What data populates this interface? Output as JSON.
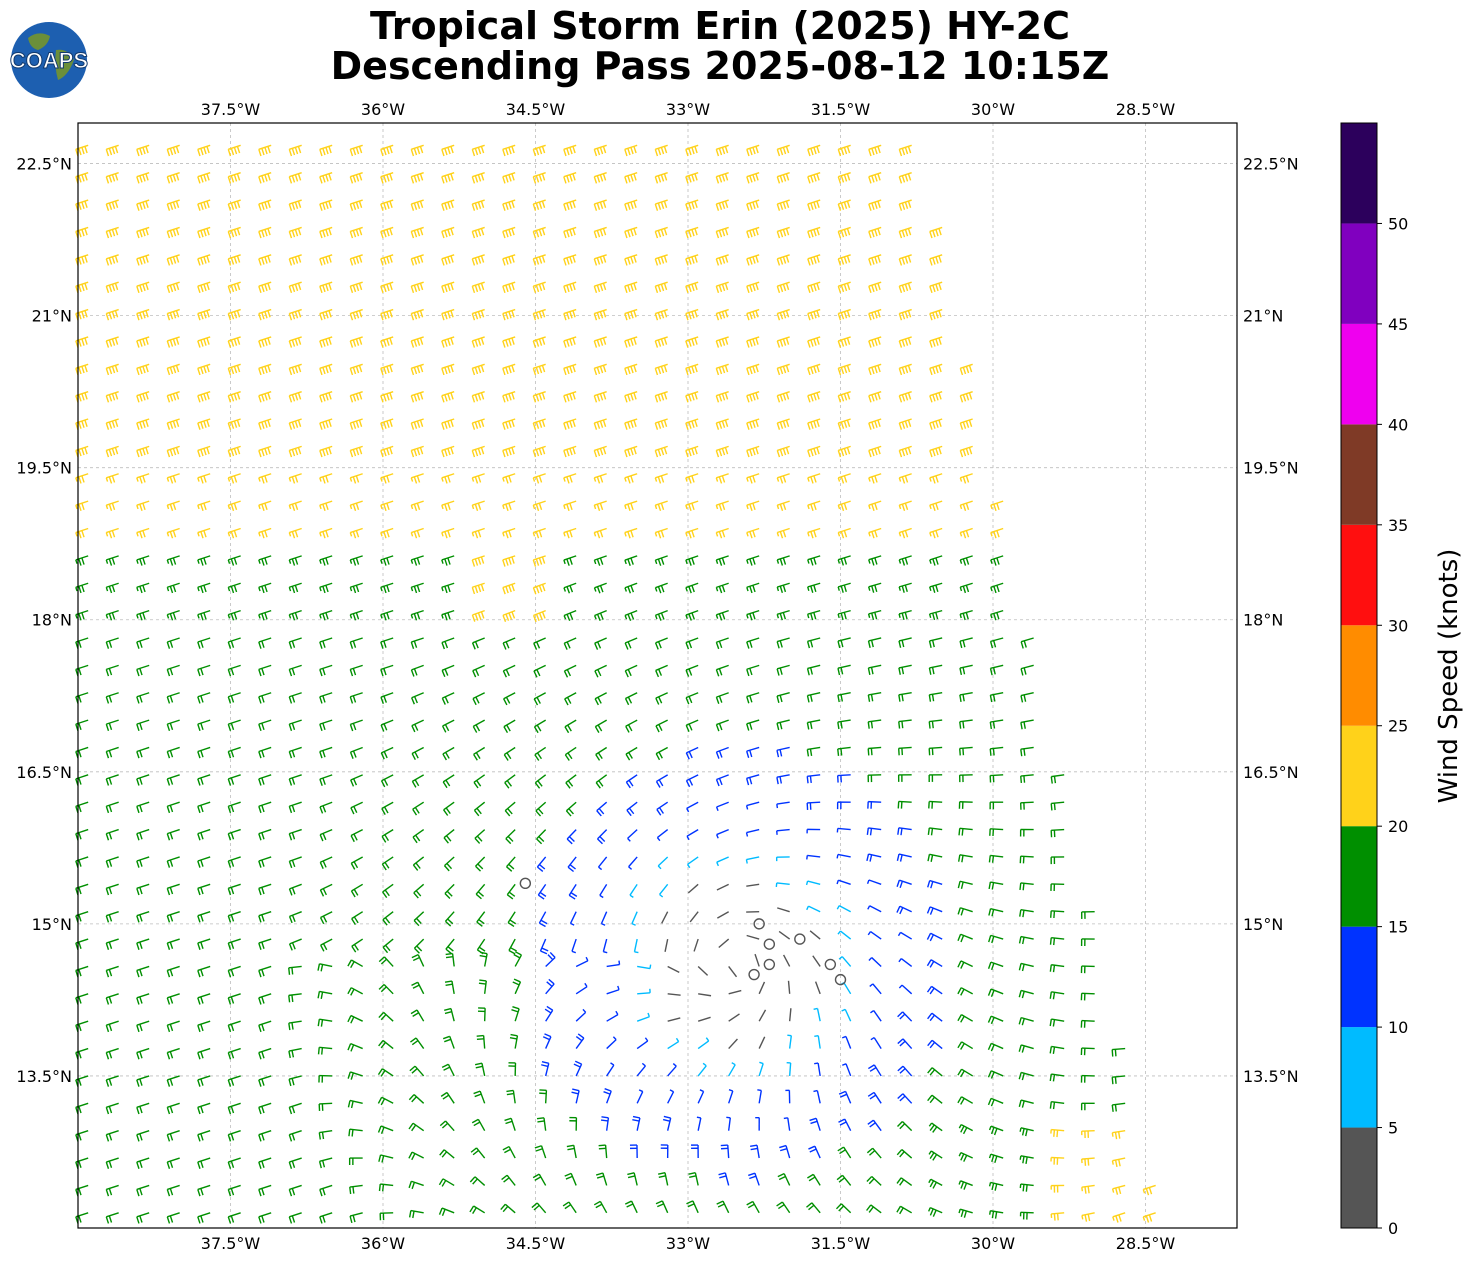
{
  "title": {
    "line1": "Tropical Storm Erin (2025) HY-2C",
    "line2": "Descending Pass 2025-08-12 10:15Z"
  },
  "logo": {
    "text": "COAPS",
    "icon": "globe-icon"
  },
  "map": {
    "lon_range": [
      -39.0,
      -27.6
    ],
    "lat_range": [
      12.0,
      22.9
    ],
    "lon_ticks": [
      "37.5°W",
      "36°W",
      "34.5°W",
      "33°W",
      "31.5°W",
      "30°W",
      "28.5°W"
    ],
    "lon_tick_values": [
      -37.5,
      -36.0,
      -34.5,
      -33.0,
      -31.5,
      -30.0,
      -28.5
    ],
    "lat_ticks": [
      "22.5°N",
      "21°N",
      "19.5°N",
      "18°N",
      "16.5°N",
      "15°N",
      "13.5°N"
    ],
    "lat_tick_values": [
      22.5,
      21.0,
      19.5,
      18.0,
      16.5,
      15.0,
      13.5
    ],
    "gridlines": true,
    "storm_center": {
      "lon": -32.5,
      "lat": 14.6
    }
  },
  "colorbar": {
    "label": "Wind Speed (knots)",
    "tick_labels": [
      "0",
      "5",
      "10",
      "15",
      "20",
      "25",
      "30",
      "35",
      "40",
      "45",
      "50"
    ],
    "bins": [
      {
        "min": 0,
        "max": 5,
        "color": "#555555"
      },
      {
        "min": 5,
        "max": 10,
        "color": "#00bbff"
      },
      {
        "min": 10,
        "max": 15,
        "color": "#0033ff"
      },
      {
        "min": 15,
        "max": 20,
        "color": "#008f00"
      },
      {
        "min": 20,
        "max": 25,
        "color": "#ffd21a"
      },
      {
        "min": 25,
        "max": 30,
        "color": "#ff8c00"
      },
      {
        "min": 30,
        "max": 35,
        "color": "#ff0f0f"
      },
      {
        "min": 35,
        "max": 40,
        "color": "#7f3a26"
      },
      {
        "min": 40,
        "max": 45,
        "color": "#ef00ef"
      },
      {
        "min": 45,
        "max": 50,
        "color": "#8000bf"
      },
      {
        "min": 50,
        "max": 55,
        "color": "#2c005c"
      }
    ]
  }
}
